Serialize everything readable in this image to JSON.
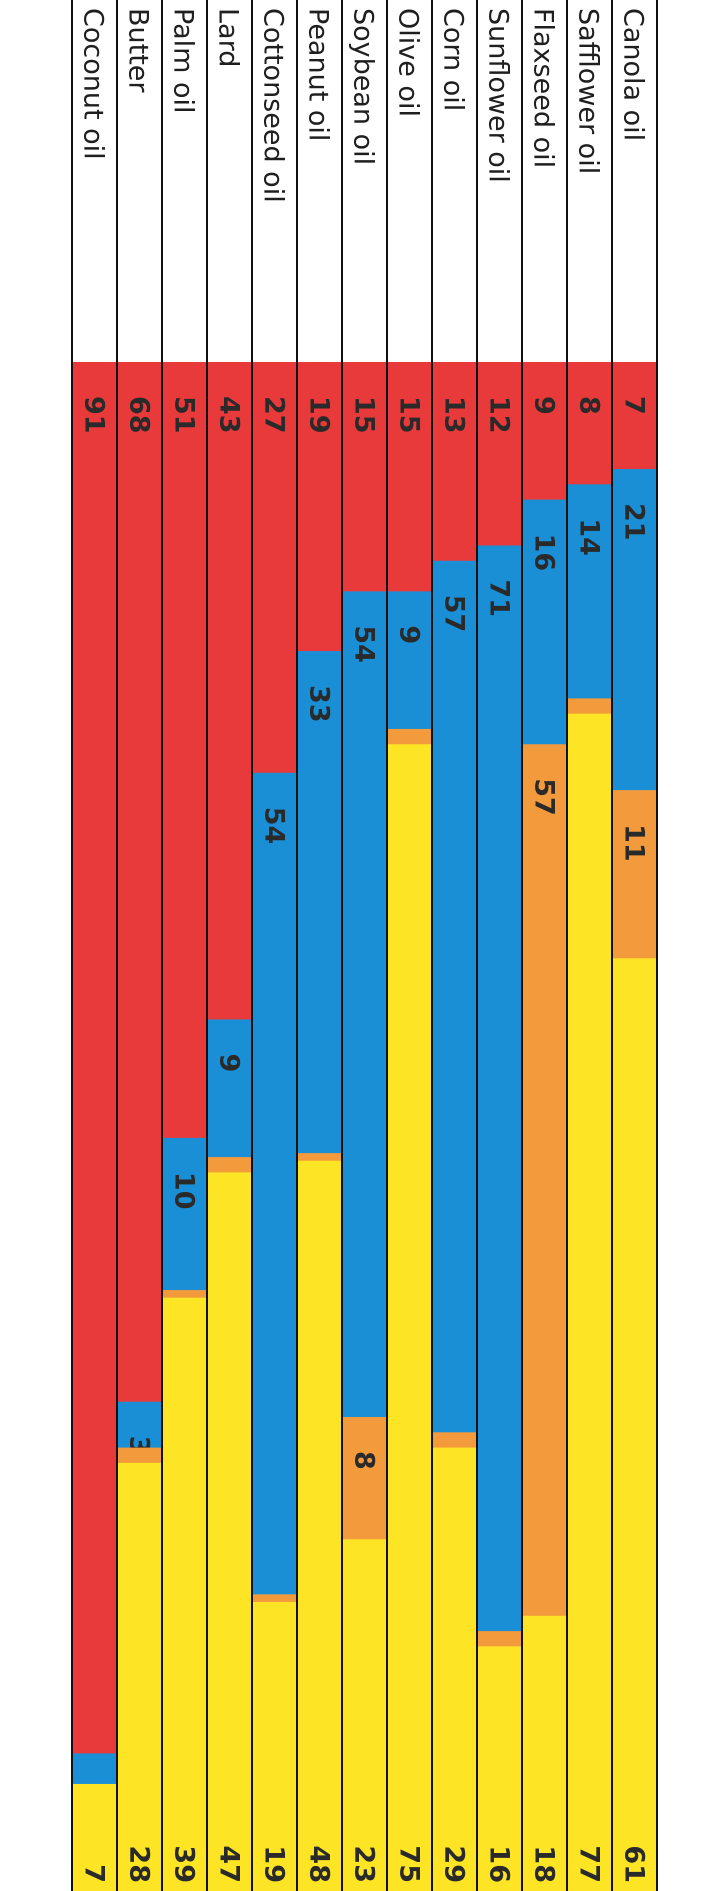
{
  "chart_data": {
    "type": "bar",
    "stacked": true,
    "orientation": "horizontal",
    "rotated": "90deg clockwise",
    "categories": [
      "Canola oil",
      "Safflower oil",
      "Flaxseed oil",
      "Sunflower oil",
      "Corn oil",
      "Olive oil",
      "Soybean oil",
      "Peanut oil",
      "Cottonseed oil",
      "Lard",
      "Palm oil",
      "Butter",
      "Coconut oil"
    ],
    "series": [
      {
        "color": "#e83a3a",
        "values": [
          7,
          8,
          9,
          12,
          13,
          15,
          15,
          19,
          27,
          43,
          51,
          68,
          91
        ],
        "labels": [
          "7",
          "8",
          "9",
          "12",
          "13",
          "15",
          "15",
          "19",
          "27",
          "43",
          "51",
          "68",
          "91"
        ]
      },
      {
        "color": "#1b8fd6",
        "values": [
          21,
          14,
          16,
          71,
          57,
          9,
          54,
          33,
          54,
          9,
          10,
          3,
          2
        ],
        "labels": [
          "21",
          "14",
          "16",
          "71",
          "57",
          "9",
          "54",
          "33",
          "54",
          "9",
          "10",
          "3",
          "2"
        ]
      },
      {
        "color": "#f39a3c",
        "values": [
          11,
          1,
          57,
          1,
          1,
          1,
          8,
          0.5,
          0.5,
          1,
          0.5,
          1,
          0
        ],
        "labels": [
          "11",
          "1",
          "57",
          "1",
          "1",
          "1",
          "8",
          "*",
          "*",
          "1",
          "*",
          "1",
          ""
        ]
      },
      {
        "color": "#fde526",
        "values": [
          61,
          77,
          18,
          16,
          29,
          75,
          23,
          48,
          19,
          47,
          39,
          28,
          7
        ],
        "labels": [
          "61",
          "77",
          "18",
          "16",
          "29",
          "75",
          "23",
          "48",
          "19",
          "47",
          "39",
          "28",
          "7"
        ]
      }
    ]
  }
}
